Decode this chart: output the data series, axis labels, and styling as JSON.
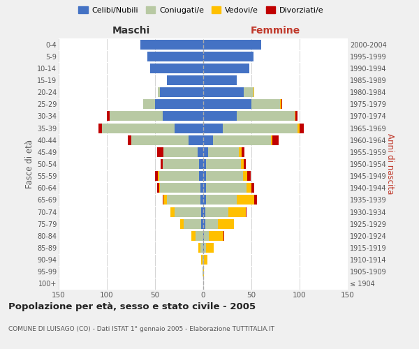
{
  "age_groups": [
    "100+",
    "95-99",
    "90-94",
    "85-89",
    "80-84",
    "75-79",
    "70-74",
    "65-69",
    "60-64",
    "55-59",
    "50-54",
    "45-49",
    "40-44",
    "35-39",
    "30-34",
    "25-29",
    "20-24",
    "15-19",
    "10-14",
    "5-9",
    "0-4"
  ],
  "birth_years": [
    "≤ 1904",
    "1905-1909",
    "1910-1914",
    "1915-1919",
    "1920-1924",
    "1925-1929",
    "1930-1934",
    "1935-1939",
    "1940-1944",
    "1945-1949",
    "1950-1954",
    "1955-1959",
    "1960-1964",
    "1965-1969",
    "1970-1974",
    "1975-1979",
    "1980-1984",
    "1985-1989",
    "1990-1994",
    "1995-1999",
    "2000-2004"
  ],
  "males": {
    "celibi": [
      0,
      0,
      0,
      0,
      0,
      2,
      2,
      3,
      3,
      4,
      4,
      6,
      15,
      30,
      42,
      50,
      45,
      38,
      55,
      58,
      65
    ],
    "coniugati": [
      0,
      1,
      1,
      3,
      8,
      18,
      28,
      35,
      42,
      42,
      38,
      35,
      60,
      75,
      55,
      12,
      2,
      0,
      0,
      0,
      0
    ],
    "vedovi": [
      0,
      0,
      1,
      2,
      4,
      4,
      4,
      3,
      1,
      1,
      0,
      0,
      0,
      0,
      0,
      0,
      0,
      0,
      0,
      0,
      0
    ],
    "divorziati": [
      0,
      0,
      0,
      0,
      0,
      0,
      0,
      1,
      2,
      3,
      2,
      7,
      3,
      4,
      3,
      0,
      0,
      0,
      0,
      0,
      0
    ]
  },
  "females": {
    "nubili": [
      0,
      0,
      0,
      1,
      1,
      2,
      2,
      3,
      3,
      3,
      3,
      5,
      10,
      20,
      35,
      50,
      42,
      35,
      48,
      52,
      60
    ],
    "coniugate": [
      0,
      0,
      1,
      2,
      5,
      13,
      24,
      32,
      42,
      38,
      36,
      32,
      60,
      78,
      60,
      30,
      10,
      0,
      0,
      0,
      0
    ],
    "vedove": [
      0,
      1,
      3,
      8,
      15,
      17,
      18,
      18,
      5,
      5,
      3,
      3,
      2,
      2,
      1,
      1,
      1,
      0,
      0,
      0,
      0
    ],
    "divorziate": [
      0,
      0,
      0,
      0,
      1,
      0,
      1,
      3,
      3,
      3,
      2,
      3,
      6,
      4,
      2,
      1,
      0,
      0,
      0,
      0,
      0
    ]
  },
  "colors": {
    "celibi": "#4472c4",
    "coniugati": "#b8c9a3",
    "vedovi": "#ffc000",
    "divorziati": "#c00000"
  },
  "title": "Popolazione per età, sesso e stato civile - 2005",
  "subtitle": "COMUNE DI LUISAGO (CO) - Dati ISTAT 1° gennaio 2005 - Elaborazione TUTTITALIA.IT",
  "xlim": 150,
  "ylabel_left": "Fasce di età",
  "ylabel_right": "Anni di nascita",
  "xlabel_left": "Maschi",
  "xlabel_right": "Femmine",
  "background_color": "#f0f0f0",
  "plot_bg_color": "#ffffff"
}
